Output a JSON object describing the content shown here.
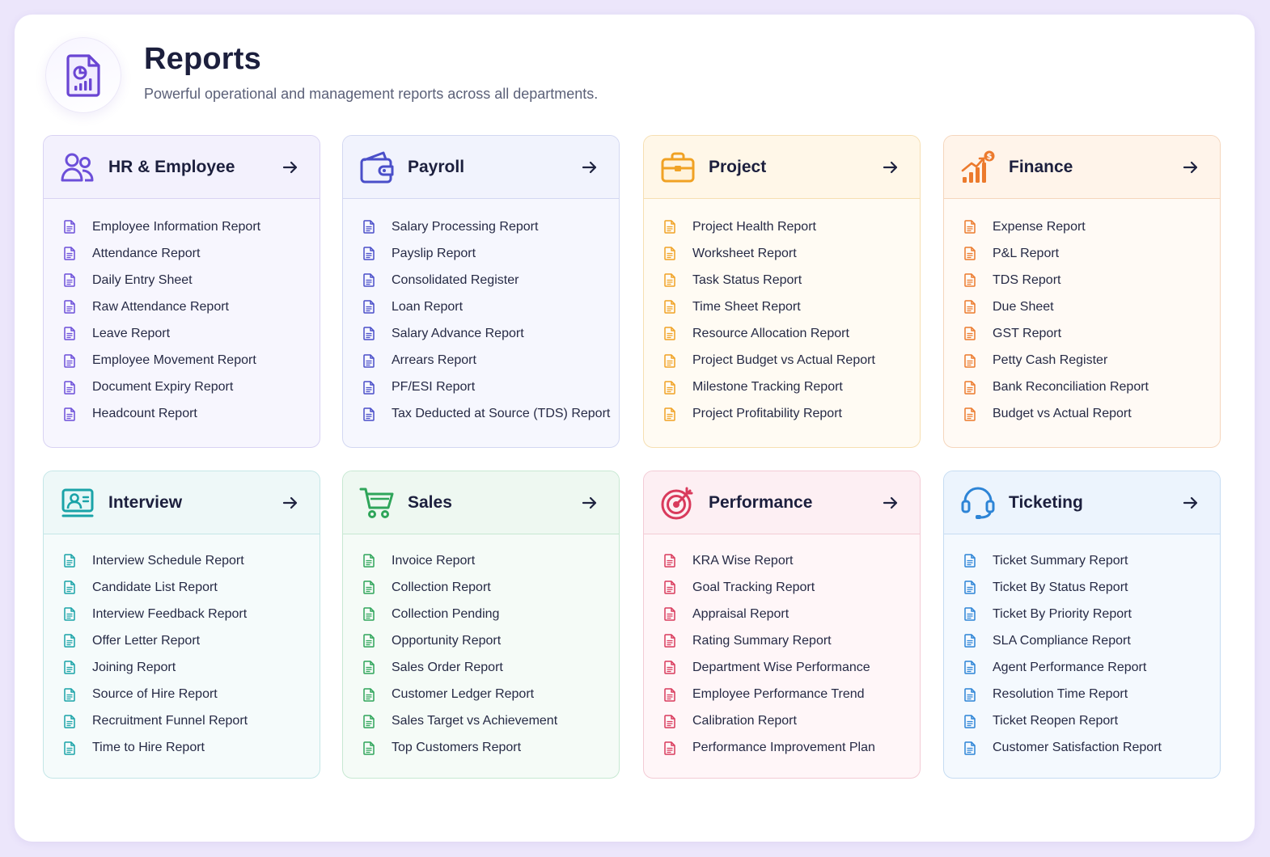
{
  "header": {
    "title": "Reports",
    "subtitle": "Powerful operational and management reports across all departments."
  },
  "cards": [
    {
      "key": "hr",
      "title": "HR & Employee",
      "icon": "users-icon",
      "accent": "#6c4fd9",
      "items": [
        "Employee Information Report",
        "Attendance Report",
        "Daily Entry Sheet",
        "Raw Attendance Report",
        "Leave Report",
        "Employee Movement Report",
        "Document Expiry Report",
        "Headcount Report"
      ]
    },
    {
      "key": "payroll",
      "title": "Payroll",
      "icon": "wallet-icon",
      "accent": "#4a4fc9",
      "items": [
        "Salary Processing Report",
        "Payslip Report",
        "Consolidated Register",
        "Loan Report",
        "Salary Advance Report",
        "Arrears Report",
        "PF/ESI Report",
        "Tax Deducted at Source (TDS) Report"
      ]
    },
    {
      "key": "project",
      "title": "Project",
      "icon": "briefcase-icon",
      "accent": "#f0a224",
      "items": [
        "Project Health Report",
        "Worksheet Report",
        "Task Status Report",
        "Time Sheet Report",
        "Resource Allocation Report",
        "Project Budget vs Actual Report",
        "Milestone Tracking Report",
        "Project Profitability Report"
      ]
    },
    {
      "key": "finance",
      "title": "Finance",
      "icon": "finance-chart-icon",
      "accent": "#ec7a2d",
      "items": [
        "Expense Report",
        "P&L Report",
        "TDS Report",
        "Due Sheet",
        "GST Report",
        "Petty Cash Register",
        "Bank Reconciliation Report",
        "Budget vs Actual Report"
      ]
    },
    {
      "key": "interview",
      "title": "Interview",
      "icon": "candidate-board-icon",
      "accent": "#1aa3a8",
      "items": [
        "Interview Schedule Report",
        "Candidate List Report",
        "Interview Feedback Report",
        "Offer Letter Report",
        "Joining Report",
        "Source of Hire Report",
        "Recruitment Funnel Report",
        "Time to Hire Report"
      ]
    },
    {
      "key": "sales",
      "title": "Sales",
      "icon": "cart-icon",
      "accent": "#2fa55a",
      "items": [
        "Invoice Report",
        "Collection Report",
        "Collection Pending",
        "Opportunity Report",
        "Sales Order Report",
        "Customer Ledger Report",
        "Sales Target vs Achievement",
        "Top Customers Report"
      ]
    },
    {
      "key": "performance",
      "title": "Performance",
      "icon": "target-icon",
      "accent": "#d93a5c",
      "items": [
        "KRA Wise Report",
        "Goal Tracking Report",
        "Appraisal Report",
        "Rating Summary Report",
        "Department Wise Performance",
        "Employee Performance Trend",
        "Calibration Report",
        "Performance Improvement Plan"
      ]
    },
    {
      "key": "ticketing",
      "title": "Ticketing",
      "icon": "headset-icon",
      "accent": "#2d84d6",
      "items": [
        "Ticket Summary Report",
        "Ticket By Status Report",
        "Ticket By Priority Report",
        "SLA Compliance Report",
        "Agent Performance Report",
        "Resolution Time Report",
        "Ticket Reopen Report",
        "Customer Satisfaction Report"
      ]
    }
  ]
}
